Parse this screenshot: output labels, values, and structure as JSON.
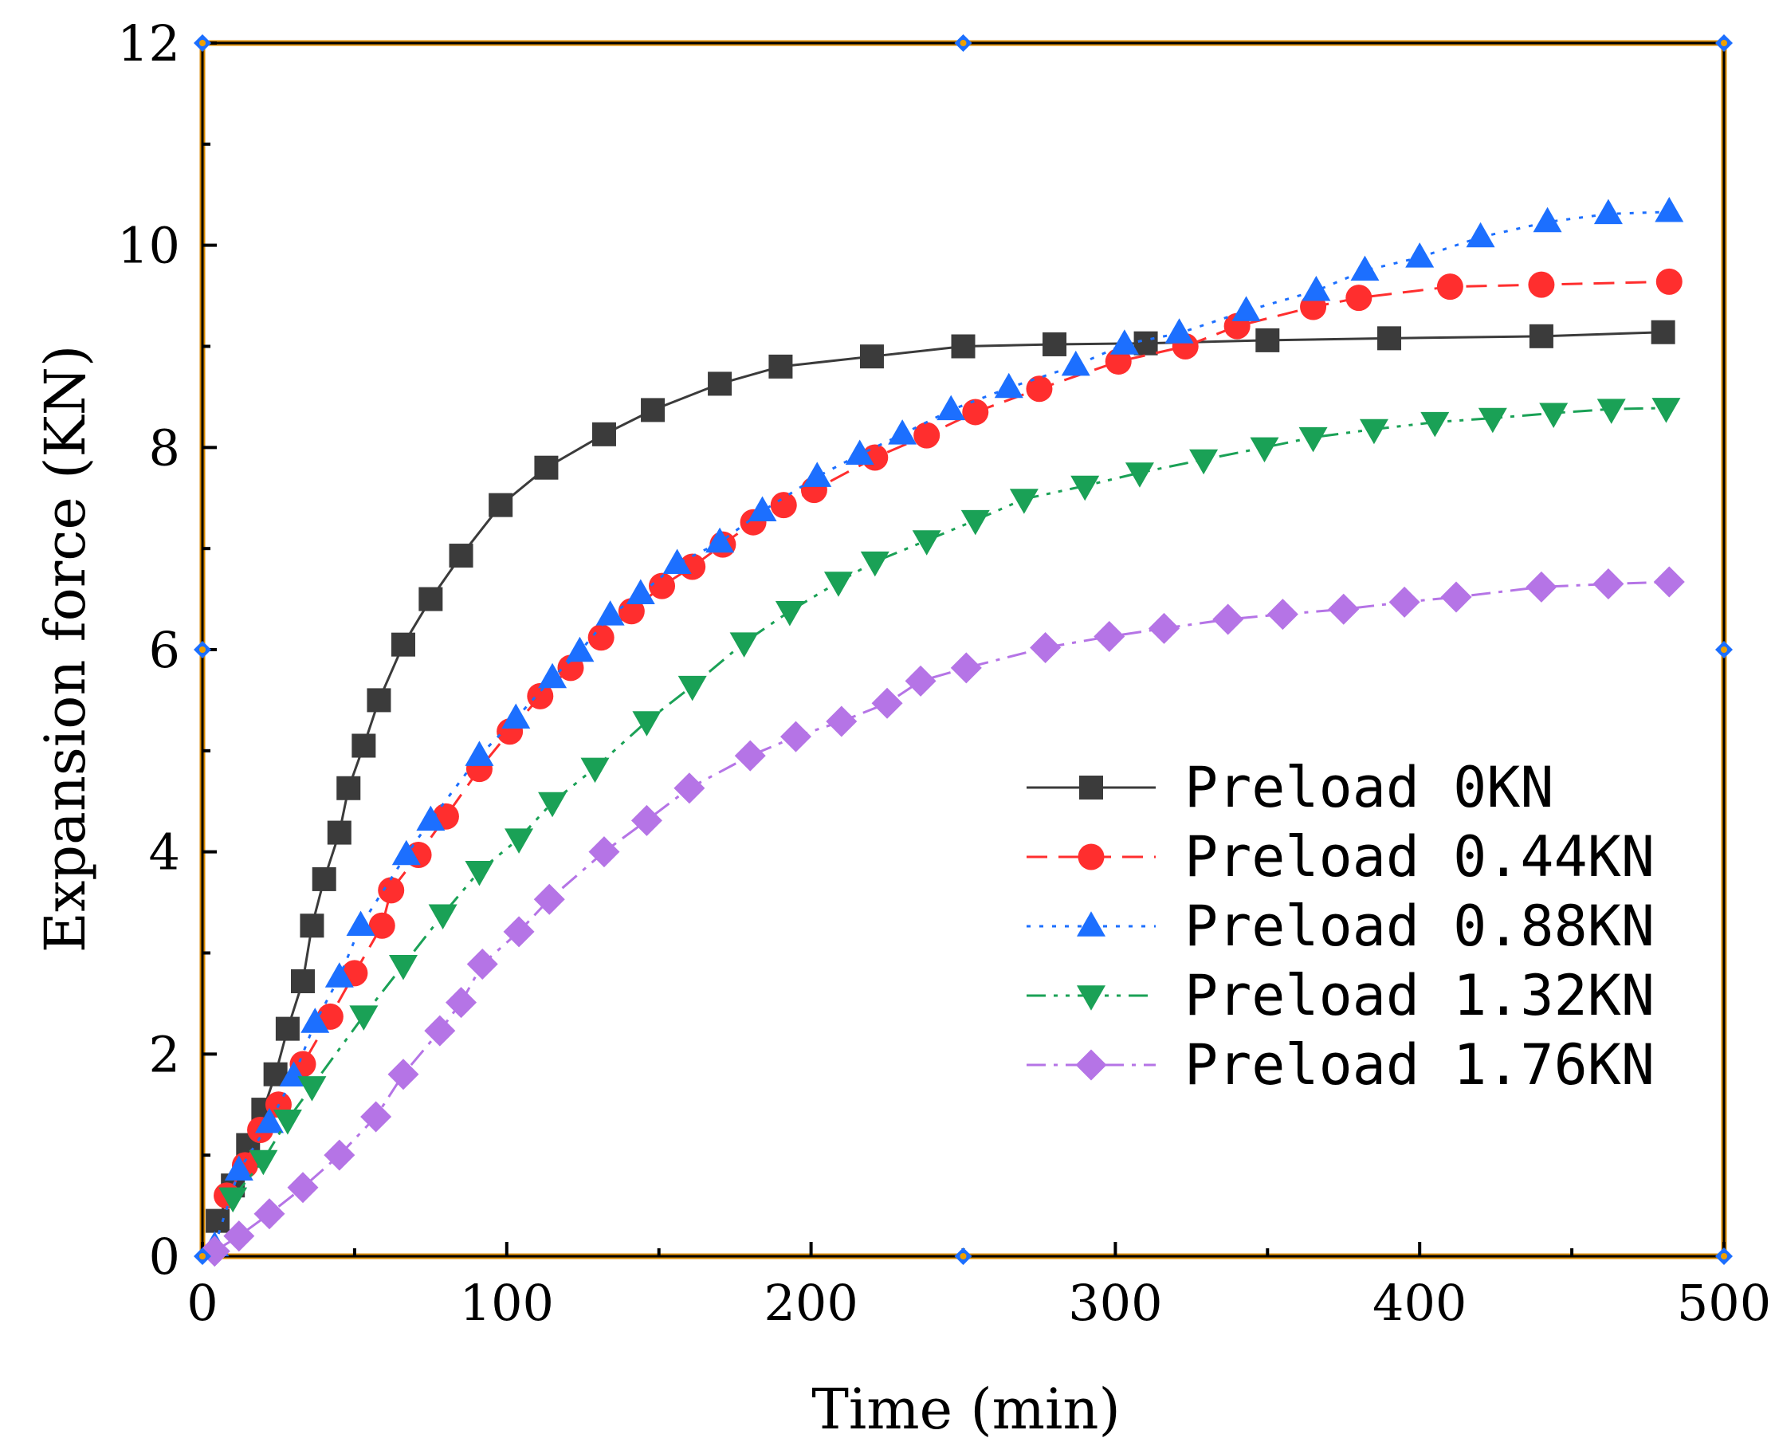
{
  "chart_data": {
    "type": "line",
    "title": "",
    "xlabel": "Time (min)",
    "ylabel": "Expansion force (KN)",
    "xlim": [
      0,
      500
    ],
    "ylim": [
      0,
      12
    ],
    "x_ticks": [
      0,
      100,
      200,
      300,
      400,
      500
    ],
    "y_ticks": [
      0,
      2,
      4,
      6,
      8,
      10,
      12
    ],
    "x_tick_labels": [
      "0",
      "100",
      "200",
      "300",
      "400",
      "500"
    ],
    "y_tick_labels": [
      "0",
      "2",
      "4",
      "6",
      "8",
      "10",
      "12"
    ],
    "grid": false,
    "legend_position": "center-right",
    "series": [
      {
        "name": "Preload 0KN",
        "color": "#3b3b3b",
        "marker": "square",
        "line_style": "solid",
        "points": [
          [
            5,
            0.35
          ],
          [
            10,
            0.7
          ],
          [
            15,
            1.1
          ],
          [
            20,
            1.45
          ],
          [
            24,
            1.8
          ],
          [
            28,
            2.25
          ],
          [
            33,
            2.72
          ],
          [
            36,
            3.27
          ],
          [
            40,
            3.73
          ],
          [
            45,
            4.19
          ],
          [
            48,
            4.63
          ],
          [
            53,
            5.05
          ],
          [
            58,
            5.5
          ],
          [
            66,
            6.05
          ],
          [
            75,
            6.5
          ],
          [
            85,
            6.93
          ],
          [
            98,
            7.43
          ],
          [
            113,
            7.8
          ],
          [
            132,
            8.13
          ],
          [
            148,
            8.37
          ],
          [
            170,
            8.63
          ],
          [
            190,
            8.8
          ],
          [
            220,
            8.9
          ],
          [
            250,
            9.0
          ],
          [
            280,
            9.02
          ],
          [
            310,
            9.03
          ],
          [
            350,
            9.06
          ],
          [
            390,
            9.08
          ],
          [
            440,
            9.1
          ],
          [
            480,
            9.14
          ]
        ]
      },
      {
        "name": "Preload 0.44KN",
        "color": "#ff2e2e",
        "marker": "circle",
        "line_style": "dashed",
        "points": [
          [
            8,
            0.6
          ],
          [
            14,
            0.9
          ],
          [
            19,
            1.25
          ],
          [
            25,
            1.5
          ],
          [
            33,
            1.9
          ],
          [
            42,
            2.37
          ],
          [
            50,
            2.8
          ],
          [
            59,
            3.27
          ],
          [
            62,
            3.62
          ],
          [
            71,
            3.97
          ],
          [
            80,
            4.35
          ],
          [
            91,
            4.82
          ],
          [
            101,
            5.19
          ],
          [
            111,
            5.54
          ],
          [
            121,
            5.82
          ],
          [
            131,
            6.12
          ],
          [
            141,
            6.38
          ],
          [
            151,
            6.63
          ],
          [
            161,
            6.82
          ],
          [
            171,
            7.04
          ],
          [
            181,
            7.26
          ],
          [
            191,
            7.43
          ],
          [
            201,
            7.58
          ],
          [
            221,
            7.9
          ],
          [
            238,
            8.12
          ],
          [
            254,
            8.35
          ],
          [
            275,
            8.58
          ],
          [
            301,
            8.85
          ],
          [
            323,
            9.0
          ],
          [
            340,
            9.2
          ],
          [
            365,
            9.39
          ],
          [
            380,
            9.48
          ],
          [
            410,
            9.59
          ],
          [
            440,
            9.61
          ],
          [
            482,
            9.64
          ]
        ]
      },
      {
        "name": "Preload 0.88KN",
        "color": "#1c6fff",
        "marker": "triangle-up",
        "line_style": "dotted",
        "points": [
          [
            4,
            0.1
          ],
          [
            12,
            0.85
          ],
          [
            22,
            1.32
          ],
          [
            30,
            1.78
          ],
          [
            37,
            2.31
          ],
          [
            45,
            2.76
          ],
          [
            52,
            3.27
          ],
          [
            67,
            3.97
          ],
          [
            75,
            4.31
          ],
          [
            91,
            4.95
          ],
          [
            103,
            5.32
          ],
          [
            115,
            5.72
          ],
          [
            124,
            5.98
          ],
          [
            134,
            6.34
          ],
          [
            144,
            6.55
          ],
          [
            156,
            6.85
          ],
          [
            170,
            7.06
          ],
          [
            184,
            7.37
          ],
          [
            202,
            7.71
          ],
          [
            216,
            7.93
          ],
          [
            230,
            8.13
          ],
          [
            246,
            8.37
          ],
          [
            265,
            8.59
          ],
          [
            287,
            8.81
          ],
          [
            303,
            9.02
          ],
          [
            321,
            9.13
          ],
          [
            343,
            9.35
          ],
          [
            366,
            9.55
          ],
          [
            382,
            9.75
          ],
          [
            400,
            9.88
          ],
          [
            420,
            10.08
          ],
          [
            442,
            10.23
          ],
          [
            462,
            10.31
          ],
          [
            482,
            10.33
          ]
        ]
      },
      {
        "name": "Preload 1.32KN",
        "color": "#1aa156",
        "marker": "triangle-down",
        "line_style": "dash-dot-dot",
        "points": [
          [
            10,
            0.58
          ],
          [
            20,
            0.95
          ],
          [
            28,
            1.35
          ],
          [
            36,
            1.68
          ],
          [
            53,
            2.38
          ],
          [
            66,
            2.88
          ],
          [
            79,
            3.38
          ],
          [
            91,
            3.81
          ],
          [
            104,
            4.13
          ],
          [
            115,
            4.49
          ],
          [
            129,
            4.83
          ],
          [
            146,
            5.29
          ],
          [
            161,
            5.64
          ],
          [
            178,
            6.07
          ],
          [
            193,
            6.38
          ],
          [
            209,
            6.67
          ],
          [
            221,
            6.87
          ],
          [
            238,
            7.08
          ],
          [
            254,
            7.28
          ],
          [
            270,
            7.49
          ],
          [
            290,
            7.62
          ],
          [
            308,
            7.75
          ],
          [
            329,
            7.88
          ],
          [
            349,
            8.0
          ],
          [
            365,
            8.1
          ],
          [
            385,
            8.18
          ],
          [
            405,
            8.25
          ],
          [
            424,
            8.29
          ],
          [
            444,
            8.34
          ],
          [
            463,
            8.38
          ],
          [
            481,
            8.39
          ]
        ]
      },
      {
        "name": "Preload 1.76KN",
        "color": "#b574e6",
        "marker": "diamond",
        "line_style": "dash-dot",
        "points": [
          [
            4,
            0.05
          ],
          [
            12,
            0.2
          ],
          [
            22,
            0.42
          ],
          [
            33,
            0.68
          ],
          [
            45,
            1.0
          ],
          [
            57,
            1.38
          ],
          [
            66,
            1.8
          ],
          [
            78,
            2.23
          ],
          [
            85,
            2.51
          ],
          [
            92,
            2.89
          ],
          [
            104,
            3.21
          ],
          [
            114,
            3.53
          ],
          [
            132,
            4.0
          ],
          [
            146,
            4.31
          ],
          [
            160,
            4.63
          ],
          [
            180,
            4.95
          ],
          [
            195,
            5.14
          ],
          [
            210,
            5.29
          ],
          [
            225,
            5.47
          ],
          [
            236,
            5.69
          ],
          [
            251,
            5.82
          ],
          [
            277,
            6.02
          ],
          [
            298,
            6.13
          ],
          [
            316,
            6.21
          ],
          [
            337,
            6.3
          ],
          [
            355,
            6.35
          ],
          [
            375,
            6.4
          ],
          [
            395,
            6.47
          ],
          [
            412,
            6.52
          ],
          [
            440,
            6.62
          ],
          [
            462,
            6.65
          ],
          [
            482,
            6.67
          ]
        ]
      }
    ]
  }
}
